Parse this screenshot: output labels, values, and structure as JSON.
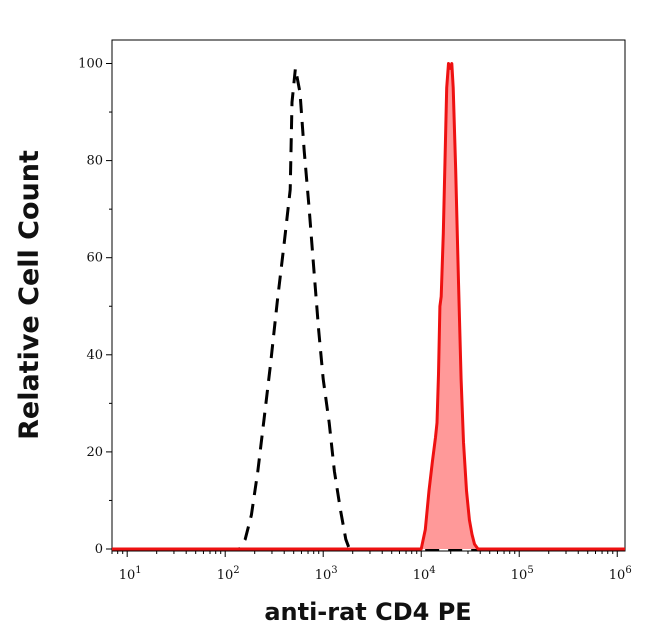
{
  "chart_data": {
    "type": "area",
    "title": "",
    "xlabel": "anti-rat CD4 PE",
    "ylabel": "Relative Cell Count",
    "xscale": "log",
    "xlim": [
      7,
      1200000
    ],
    "ylim": [
      0,
      105
    ],
    "x_ticks": [
      {
        "base": "10",
        "exp": "1",
        "value": 10
      },
      {
        "base": "10",
        "exp": "2",
        "value": 100
      },
      {
        "base": "10",
        "exp": "3",
        "value": 1000
      },
      {
        "base": "10",
        "exp": "4",
        "value": 10000
      },
      {
        "base": "10",
        "exp": "5",
        "value": 100000
      },
      {
        "base": "10",
        "exp": "6",
        "value": 1000000
      }
    ],
    "y_ticks": [
      0,
      20,
      40,
      60,
      80,
      100
    ],
    "grid": false,
    "legend": "none",
    "series": [
      {
        "style": "dashed",
        "color": "#000000",
        "fill": "none",
        "x": [
          7,
          140,
          160,
          185,
          215,
          250,
          290,
          340,
          400,
          460,
          480,
          520,
          580,
          640,
          720,
          800,
          900,
          1000,
          1150,
          1300,
          1500,
          1700,
          1850,
          2000,
          1200000
        ],
        "y": [
          0,
          0,
          2,
          7,
          16,
          27,
          38,
          51,
          63,
          74,
          92,
          99,
          94,
          82,
          70,
          58,
          45,
          35,
          26,
          16,
          8,
          2,
          0,
          0,
          0
        ]
      },
      {
        "style": "solid",
        "color": "#ee1111",
        "fill": "#ff9999",
        "x": [
          7,
          10000,
          11000,
          12000,
          13000,
          14000,
          14500,
          15000,
          15500,
          16000,
          16800,
          17500,
          18200,
          19000,
          19800,
          20500,
          21200,
          22500,
          24000,
          25500,
          27000,
          29000,
          31000,
          33000,
          35000,
          38000,
          1200000
        ],
        "y": [
          0,
          0,
          4,
          12,
          18,
          23,
          26,
          36,
          50,
          52,
          65,
          80,
          95,
          100,
          99,
          100,
          95,
          78,
          55,
          35,
          22,
          12,
          6,
          3,
          1,
          0,
          0
        ]
      }
    ]
  }
}
